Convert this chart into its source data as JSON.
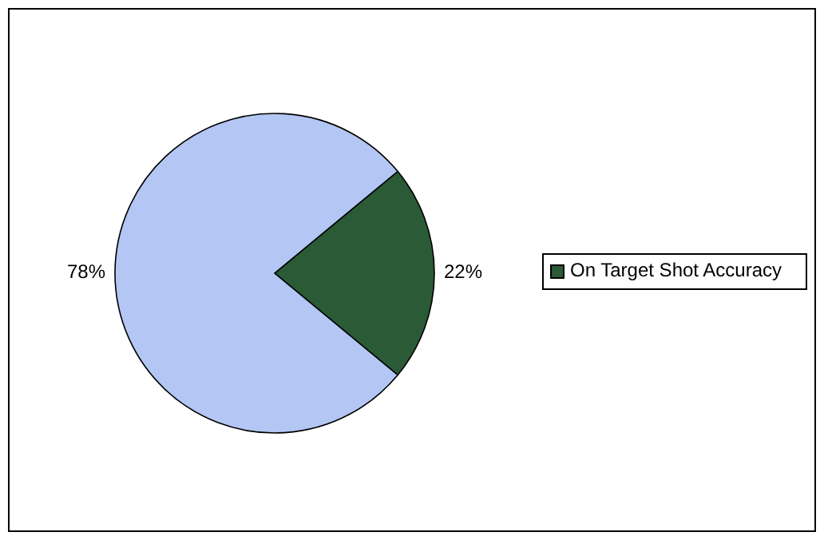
{
  "chart_data": {
    "type": "pie",
    "categories": [
      "On Target Shot Accuracy",
      null
    ],
    "values": [
      22,
      78
    ],
    "colors": [
      "#2b5a36",
      "#b3c6f4"
    ],
    "value_labels": [
      "22%",
      "78%"
    ],
    "legend": "right"
  }
}
